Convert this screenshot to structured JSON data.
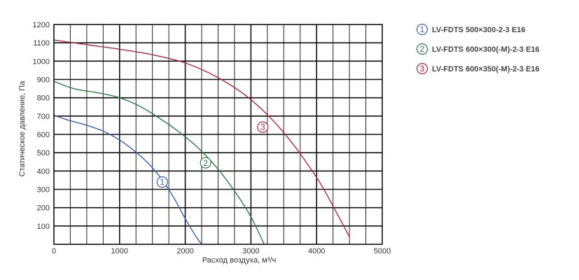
{
  "chart_data": {
    "type": "line",
    "xlabel": "Расход воздуха, м³/ч",
    "ylabel": "Статическое давление, Па",
    "xlim": [
      0,
      5000
    ],
    "ylim": [
      0,
      1200
    ],
    "x_ticks": [
      0,
      1000,
      2000,
      3000,
      4000,
      5000
    ],
    "y_ticks": [
      100,
      200,
      300,
      400,
      500,
      600,
      700,
      800,
      900,
      1000,
      1100,
      1200
    ],
    "x_minor_step": 250,
    "y_minor_step": 100,
    "grid": true,
    "legend_position": "right",
    "series": [
      {
        "name": "LV-FDTS 500×300-2-3 E16",
        "marker": "1",
        "color": "#3a62b0",
        "label_at": [
          1650,
          340
        ],
        "points": [
          [
            0,
            705
          ],
          [
            200,
            680
          ],
          [
            500,
            650
          ],
          [
            800,
            610
          ],
          [
            1100,
            545
          ],
          [
            1400,
            455
          ],
          [
            1600,
            375
          ],
          [
            1800,
            270
          ],
          [
            2000,
            140
          ],
          [
            2150,
            50
          ],
          [
            2250,
            0
          ]
        ]
      },
      {
        "name": "LV-FDTS 600×300(-M)-2-3 E16",
        "marker": "2",
        "color": "#2e7d46",
        "label_at": [
          2310,
          445
        ],
        "points": [
          [
            0,
            890
          ],
          [
            300,
            850
          ],
          [
            700,
            825
          ],
          [
            1000,
            800
          ],
          [
            1300,
            755
          ],
          [
            1600,
            690
          ],
          [
            1900,
            615
          ],
          [
            2200,
            525
          ],
          [
            2500,
            410
          ],
          [
            2800,
            265
          ],
          [
            3000,
            150
          ],
          [
            3150,
            40
          ],
          [
            3200,
            0
          ]
        ]
      },
      {
        "name": "LV-FDTS 600×350(-M)-2-3 E16",
        "marker": "3",
        "color": "#b0283e",
        "label_at": [
          3180,
          640
        ],
        "points": [
          [
            0,
            1115
          ],
          [
            500,
            1090
          ],
          [
            1000,
            1065
          ],
          [
            1500,
            1035
          ],
          [
            2000,
            990
          ],
          [
            2500,
            910
          ],
          [
            3000,
            790
          ],
          [
            3500,
            610
          ],
          [
            4000,
            365
          ],
          [
            4300,
            175
          ],
          [
            4500,
            40
          ]
        ]
      }
    ]
  }
}
